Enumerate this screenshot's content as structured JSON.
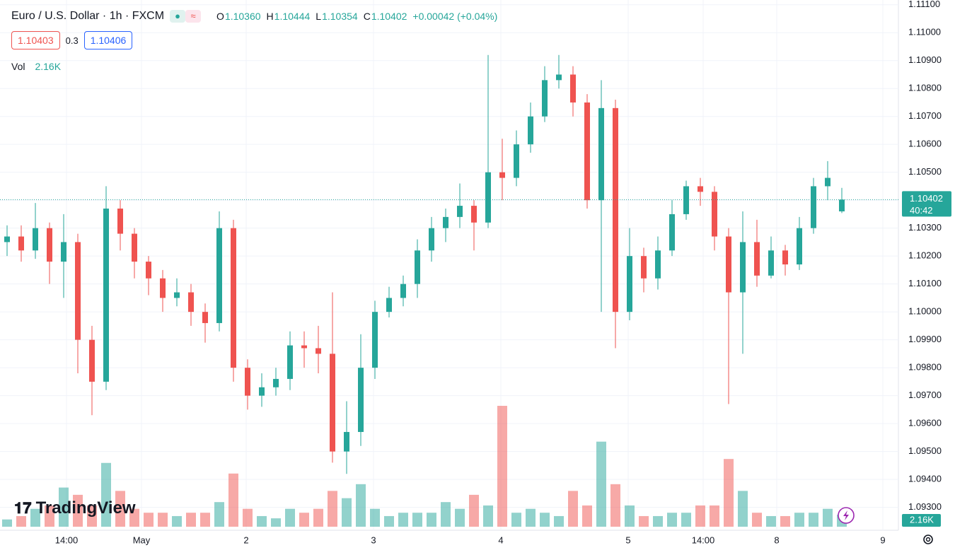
{
  "header": {
    "symbol": "Euro / U.S. Dollar · 1h · FXCM",
    "ohlc": [
      {
        "label": "O",
        "value": "1.10360"
      },
      {
        "label": "H",
        "value": "1.10444"
      },
      {
        "label": "L",
        "value": "1.10354"
      },
      {
        "label": "C",
        "value": "1.10402"
      }
    ],
    "change": "+0.00042 (+0.04%)",
    "bid": "1.10403",
    "spread": "0.3",
    "ask": "1.10406",
    "vol_label": "Vol",
    "vol_value": "2.16K",
    "watermark": "TradingView"
  },
  "chart_data": {
    "type": "candlestick",
    "open": [
      1.1025,
      1.1027,
      1.1022,
      1.103,
      1.1018,
      1.1025,
      1.099,
      1.0975,
      1.1037,
      1.1028,
      1.1018,
      1.1012,
      1.1005,
      1.1007,
      1.1,
      1.0996,
      1.103,
      1.098,
      1.097,
      1.0973,
      1.0976,
      1.0988,
      1.0987,
      1.0985,
      1.095,
      1.0957,
      1.098,
      1.1,
      1.1005,
      1.101,
      1.1022,
      1.103,
      1.1034,
      1.1038,
      1.1032,
      1.105,
      1.1048,
      1.106,
      1.107,
      1.1083,
      1.1085,
      1.1075,
      1.104,
      1.1073,
      1.1,
      1.102,
      1.1012,
      1.1022,
      1.1035,
      1.1045,
      1.1043,
      1.1027,
      1.1007,
      1.1025,
      1.1013,
      1.1022,
      1.1017,
      1.103,
      1.1045,
      1.1036
    ],
    "high": [
      1.1031,
      1.1031,
      1.1039,
      1.1032,
      1.1035,
      1.1028,
      1.0995,
      1.1045,
      1.104,
      1.103,
      1.102,
      1.1015,
      1.1012,
      1.101,
      1.1003,
      1.1036,
      1.1033,
      1.0983,
      1.0978,
      1.098,
      1.0993,
      1.0993,
      1.0995,
      1.1007,
      1.0968,
      1.0992,
      1.1004,
      1.1009,
      1.1013,
      1.1026,
      1.1034,
      1.1037,
      1.1046,
      1.104,
      1.1092,
      1.1062,
      1.1065,
      1.1075,
      1.1088,
      1.1092,
      1.1088,
      1.1078,
      1.1083,
      1.1076,
      1.103,
      1.1023,
      1.1027,
      1.104,
      1.1047,
      1.1048,
      1.1045,
      1.103,
      1.1036,
      1.1033,
      1.1027,
      1.1024,
      1.1034,
      1.1048,
      1.1054,
      1.10444
    ],
    "low": [
      1.102,
      1.1018,
      1.1019,
      1.101,
      1.1005,
      1.0978,
      1.0963,
      1.0972,
      1.1022,
      1.1012,
      1.1006,
      1.1,
      1.1002,
      1.0995,
      1.0989,
      1.0993,
      1.0975,
      1.0965,
      1.0966,
      1.097,
      1.0972,
      1.098,
      1.0978,
      1.0946,
      1.0942,
      1.0952,
      1.0976,
      1.0998,
      1.1002,
      1.1005,
      1.1018,
      1.1025,
      1.103,
      1.1022,
      1.103,
      1.104,
      1.1045,
      1.1057,
      1.1068,
      1.108,
      1.107,
      1.1037,
      1.1,
      1.0987,
      1.0997,
      1.1007,
      1.1008,
      1.102,
      1.1033,
      1.1038,
      1.1022,
      1.0967,
      1.0985,
      1.1009,
      1.1012,
      1.1013,
      1.1015,
      1.1028,
      1.104,
      1.10354
    ],
    "close": [
      1.1027,
      1.1022,
      1.103,
      1.1018,
      1.1025,
      1.099,
      1.0975,
      1.1037,
      1.1028,
      1.1018,
      1.1012,
      1.1005,
      1.1007,
      1.1,
      1.0996,
      1.103,
      1.098,
      1.097,
      1.0973,
      1.0976,
      1.0988,
      1.0987,
      1.0985,
      1.095,
      1.0957,
      1.098,
      1.1,
      1.1005,
      1.101,
      1.1022,
      1.103,
      1.1034,
      1.1038,
      1.1032,
      1.105,
      1.1048,
      1.106,
      1.107,
      1.1083,
      1.1085,
      1.1075,
      1.104,
      1.1073,
      1.1,
      1.102,
      1.1012,
      1.1022,
      1.1035,
      1.1045,
      1.1043,
      1.1027,
      1.1007,
      1.1025,
      1.1013,
      1.1022,
      1.1017,
      1.103,
      1.1045,
      1.1048,
      1.10402
    ],
    "volume": [
      1300,
      1900,
      3200,
      3800,
      7000,
      5700,
      3800,
      11400,
      6400,
      3200,
      2500,
      2500,
      1900,
      2500,
      2500,
      4400,
      9500,
      3200,
      1900,
      1500,
      3200,
      2500,
      3200,
      6400,
      5100,
      7600,
      3200,
      1900,
      2500,
      2500,
      2500,
      4400,
      3200,
      5700,
      3800,
      21600,
      2500,
      3200,
      2500,
      1900,
      6400,
      3800,
      15200,
      7600,
      3800,
      1900,
      1900,
      2500,
      2500,
      3800,
      3800,
      12100,
      6400,
      2500,
      1900,
      1900,
      2500,
      2500,
      3200,
      2160
    ],
    "volume_label": "2.16K",
    "volume_lim": [
      0,
      24000
    ],
    "countdown": "40:42",
    "up_color": "#26a69a",
    "down_color": "#ef5350",
    "xlim": [
      -0.5,
      63
    ],
    "xticks": [
      {
        "value": 4.2,
        "label": "14:00"
      },
      {
        "value": 9.5,
        "label": "May"
      },
      {
        "value": 16.9,
        "label": "2"
      },
      {
        "value": 25.9,
        "label": "3"
      },
      {
        "value": 34.9,
        "label": "4"
      },
      {
        "value": 43.9,
        "label": "5"
      },
      {
        "value": 49.2,
        "label": "14:00"
      },
      {
        "value": 54.4,
        "label": "8"
      },
      {
        "value": 61.9,
        "label": "9"
      }
    ],
    "ylim": [
      1.09218,
      1.11117
    ],
    "yticks": [
      {
        "value": 1.093,
        "label": "1.09300"
      },
      {
        "value": 1.094,
        "label": "1.09400"
      },
      {
        "value": 1.095,
        "label": "1.09500"
      },
      {
        "value": 1.096,
        "label": "1.09600"
      },
      {
        "value": 1.097,
        "label": "1.09700"
      },
      {
        "value": 1.098,
        "label": "1.09800"
      },
      {
        "value": 1.099,
        "label": "1.09900"
      },
      {
        "value": 1.1,
        "label": "1.10000"
      },
      {
        "value": 1.101,
        "label": "1.10100"
      },
      {
        "value": 1.102,
        "label": "1.10200"
      },
      {
        "value": 1.103,
        "label": "1.10300"
      },
      {
        "value": 1.104,
        "label": "1.10400"
      },
      {
        "value": 1.105,
        "label": "1.10500"
      },
      {
        "value": 1.106,
        "label": "1.10600"
      },
      {
        "value": 1.107,
        "label": "1.10700"
      },
      {
        "value": 1.108,
        "label": "1.10800"
      },
      {
        "value": 1.109,
        "label": "1.10900"
      },
      {
        "value": 1.11,
        "label": "1.11000"
      },
      {
        "value": 1.111,
        "label": "1.11100"
      }
    ],
    "grid": true
  }
}
